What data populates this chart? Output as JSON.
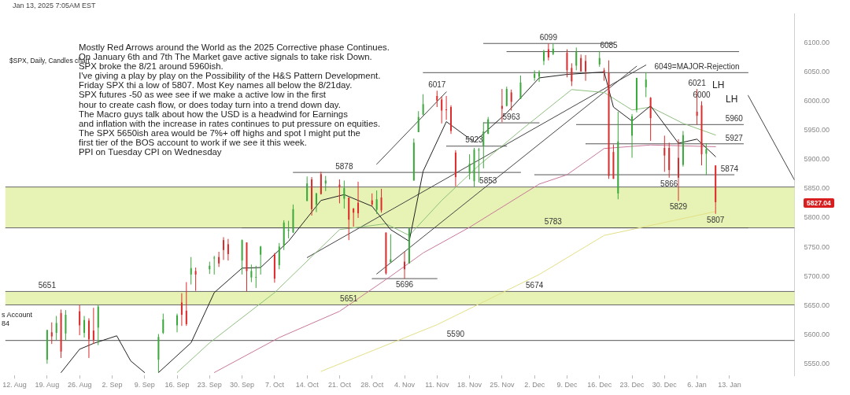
{
  "chart_data": {
    "type": "candlestick",
    "subtitle": "Jan 13, 2025 7:05AM EST",
    "annotations": [
      "Mostly Red Arrows around the World as the 2025 Corrective phase Continues.\nOn January 6th and 7th The Market gave active signals to take risk Down.\nSPX broke the 8/21 around 5960ish.\nI've giving a play by play on the Possibility of the H&S Pattern Development.\nFriday SPX thi a low of 5807. Most Key names all below the 8/21day.\nSPX futures -50 as wee see if we make a active low in the first\nhour to create cash flow, or does today turn into a trend down day.\nThe Macro guys talk about how the USD is a headwind for Earnings\nand inflation with the increase in rates continues to put pressure on equities.\nThe SPX 5650ish area would be 7%+ off highs and spot I might put the\nfirst tier of the BOS account to work if we see it this week.\nPPI on Tuesday CPI on Wednesday",
      "$SPX, Daily, Candles chart",
      "s Account\n84",
      "LH",
      "LH",
      "5827.04",
      {
        "text": "6099",
        "x": "2024-12-05",
        "y": 6099
      },
      {
        "text": "6085",
        "x": "2024-12-18",
        "y": 6085
      },
      {
        "text": "6049=MAJOR-Rejection",
        "x": "2025-01-06",
        "y": 6049
      },
      {
        "text": "6017",
        "x": "2024-11-11",
        "y": 6018
      },
      {
        "text": "6021",
        "x": "2025-01-06",
        "y": 6021
      },
      {
        "text": "6000",
        "x": "2025-01-07",
        "y": 6000
      },
      {
        "text": "5960",
        "x": "2025-01-14",
        "y": 5960
      },
      {
        "text": "5927",
        "x": "2025-01-14",
        "y": 5927
      },
      {
        "text": "5874",
        "x": "2025-01-13",
        "y": 5874
      },
      {
        "text": "5866",
        "x": "2024-12-31",
        "y": 5869
      },
      {
        "text": "5829",
        "x": "2025-01-02",
        "y": 5829
      },
      {
        "text": "5807",
        "x": "2025-01-10",
        "y": 5807
      },
      {
        "text": "5783",
        "x": "2024-12-06",
        "y": 5783
      },
      {
        "text": "5853",
        "x": "2024-11-22",
        "y": 5853
      },
      {
        "text": "5878",
        "x": "2024-10-22",
        "y": 5878
      },
      {
        "text": "5923",
        "x": "2024-11-19",
        "y": 5923
      },
      {
        "text": "5963",
        "x": "2024-11-27",
        "y": 5963
      },
      {
        "text": "5696",
        "x": "2024-11-04",
        "y": 5696
      },
      {
        "text": "5674",
        "x": "2024-12-02",
        "y": 5674
      },
      {
        "text": "5651",
        "x": "2024-10-23",
        "y": 5651
      },
      {
        "text": "5651",
        "x": "2024-08-19",
        "y": 5674
      },
      {
        "text": "5590",
        "x": "2024-11-15",
        "y": 5590
      }
    ],
    "x": [
      "2024-08-19",
      "2024-08-20",
      "2024-08-21",
      "2024-08-22",
      "2024-08-23",
      "2024-08-26",
      "2024-08-27",
      "2024-08-28",
      "2024-08-29",
      "2024-08-30",
      "2024-09-12",
      "2024-09-13",
      "2024-09-16",
      "2024-09-17",
      "2024-09-18",
      "2024-09-19",
      "2024-09-20",
      "2024-09-23",
      "2024-09-24",
      "2024-09-25",
      "2024-09-26",
      "2024-09-27",
      "2024-09-30",
      "2024-10-01",
      "2024-10-02",
      "2024-10-03",
      "2024-10-04",
      "2024-10-07",
      "2024-10-08",
      "2024-10-09",
      "2024-10-10",
      "2024-10-11",
      "2024-10-14",
      "2024-10-15",
      "2024-10-16",
      "2024-10-17",
      "2024-10-18",
      "2024-10-21",
      "2024-10-22",
      "2024-10-23",
      "2024-10-24",
      "2024-10-25",
      "2024-10-28",
      "2024-10-29",
      "2024-10-30",
      "2024-10-31",
      "2024-11-01",
      "2024-11-04",
      "2024-11-05",
      "2024-11-06",
      "2024-11-07",
      "2024-11-08",
      "2024-11-11",
      "2024-11-12",
      "2024-11-13",
      "2024-11-14",
      "2024-11-15",
      "2024-11-18",
      "2024-11-19",
      "2024-11-20",
      "2024-11-21",
      "2024-11-22",
      "2024-11-25",
      "2024-11-26",
      "2024-11-27",
      "2024-11-29",
      "2024-12-02",
      "2024-12-03",
      "2024-12-04",
      "2024-12-05",
      "2024-12-06",
      "2024-12-09",
      "2024-12-10",
      "2024-12-11",
      "2024-12-12",
      "2024-12-13",
      "2024-12-16",
      "2024-12-17",
      "2024-12-18",
      "2024-12-19",
      "2024-12-20",
      "2024-12-23",
      "2024-12-24",
      "2024-12-26",
      "2024-12-27",
      "2024-12-30",
      "2024-12-31",
      "2025-01-02",
      "2025-01-03",
      "2025-01-06",
      "2025-01-07",
      "2025-01-08",
      "2025-01-10"
    ],
    "ohlc": [
      [
        5557,
        5608,
        5550,
        5608
      ],
      [
        5604,
        5621,
        5584,
        5597
      ],
      [
        5603,
        5632,
        5591,
        5620
      ],
      [
        5637,
        5643,
        5560,
        5571
      ],
      [
        5602,
        5642,
        5590,
        5634
      ],
      [
        5640,
        5651,
        5599,
        5616
      ],
      [
        5603,
        5632,
        5595,
        5625
      ],
      [
        5624,
        5628,
        5560,
        5592
      ],
      [
        5607,
        5646,
        5584,
        5591
      ],
      [
        5612,
        5651,
        5582,
        5648
      ],
      [
        5557,
        5601,
        5535,
        5596
      ],
      [
        5603,
        5636,
        5601,
        5626
      ],
      [
        5616,
        5636,
        5604,
        5633
      ],
      [
        5655,
        5671,
        5615,
        5634
      ],
      [
        5641,
        5690,
        5615,
        5618
      ],
      [
        5703,
        5733,
        5686,
        5714
      ],
      [
        5709,
        5715,
        5675,
        5703
      ],
      [
        5712,
        5725,
        5704,
        5718
      ],
      [
        5732,
        5735,
        5703,
        5732
      ],
      [
        5733,
        5742,
        5716,
        5722
      ],
      [
        5762,
        5767,
        5728,
        5745
      ],
      [
        5755,
        5764,
        5727,
        5738
      ],
      [
        5727,
        5763,
        5703,
        5762
      ],
      [
        5758,
        5758,
        5674,
        5709
      ],
      [
        5698,
        5720,
        5690,
        5709
      ],
      [
        5698,
        5718,
        5680,
        5699
      ],
      [
        5737,
        5752,
        5703,
        5751
      ],
      [
        5737,
        5740,
        5689,
        5696
      ],
      [
        5719,
        5757,
        5712,
        5751
      ],
      [
        5752,
        5796,
        5745,
        5792
      ],
      [
        5778,
        5795,
        5765,
        5780
      ],
      [
        5775,
        5823,
        5774,
        5815
      ],
      [
        5829,
        5871,
        5829,
        5859
      ],
      [
        5866,
        5870,
        5804,
        5815
      ],
      [
        5823,
        5843,
        5810,
        5842
      ],
      [
        5875,
        5879,
        5840,
        5841
      ],
      [
        5859,
        5872,
        5846,
        5864
      ],
      [
        5857,
        5866,
        5825,
        5853
      ],
      [
        5833,
        5864,
        5816,
        5851
      ],
      [
        5835,
        5835,
        5762,
        5797
      ],
      [
        5816,
        5817,
        5785,
        5809
      ],
      [
        5826,
        5862,
        5800,
        5808
      ],
      [
        5830,
        5842,
        5820,
        5823
      ],
      [
        5814,
        5847,
        5807,
        5832
      ],
      [
        5835,
        5850,
        5809,
        5813
      ],
      [
        5775,
        5775,
        5703,
        5705
      ],
      [
        5724,
        5772,
        5724,
        5729
      ],
      [
        5725,
        5742,
        5696,
        5712
      ],
      [
        5722,
        5783,
        5722,
        5782
      ],
      [
        5864,
        5936,
        5864,
        5929
      ],
      [
        5947,
        5983,
        5947,
        5973
      ],
      [
        5977,
        6012,
        5976,
        5995
      ],
      [
        6009,
        6018,
        5990,
        6001
      ],
      [
        6003,
        6008,
        5962,
        5984
      ],
      [
        5986,
        6009,
        5968,
        5985
      ],
      [
        5990,
        5993,
        5944,
        5949
      ],
      [
        5912,
        5916,
        5854,
        5870
      ],
      [
        5877,
        5909,
        5866,
        5893
      ],
      [
        5863,
        5920,
        5853,
        5917
      ],
      [
        5917,
        5920,
        5861,
        5917
      ],
      [
        5924,
        5964,
        5885,
        5948
      ],
      [
        5944,
        5973,
        5944,
        5969
      ],
      [
        5992,
        6021,
        5964,
        5987
      ],
      [
        5992,
        6025,
        5991,
        6021
      ],
      [
        6015,
        6020,
        5984,
        5999
      ],
      [
        6004,
        6044,
        6004,
        6032
      ],
      [
        6040,
        6053,
        6035,
        6047
      ],
      [
        6042,
        6053,
        6033,
        6050
      ],
      [
        6069,
        6088,
        6062,
        6086
      ],
      [
        6089,
        6099,
        6070,
        6075
      ],
      [
        6081,
        6099,
        6079,
        6090
      ],
      [
        6083,
        6089,
        6041,
        6053
      ],
      [
        6057,
        6065,
        6026,
        6034
      ],
      [
        6061,
        6092,
        6053,
        6085
      ],
      [
        6074,
        6080,
        6051,
        6051
      ],
      [
        6069,
        6079,
        6035,
        6051
      ],
      [
        6063,
        6086,
        6059,
        6074
      ],
      [
        6053,
        6057,
        6035,
        6050
      ],
      [
        6048,
        6070,
        5867,
        5872
      ],
      [
        5913,
        5926,
        5867,
        5867
      ],
      [
        5842,
        5982,
        5832,
        5931
      ],
      [
        5941,
        5978,
        5903,
        5974
      ],
      [
        5985,
        6040,
        5981,
        6040
      ],
      [
        6024,
        6049,
        6007,
        6037
      ],
      [
        6006,
        6007,
        5932,
        5971
      ],
      [
        5920,
        5941,
        5879,
        5907
      ],
      [
        5920,
        5929,
        5869,
        5882
      ],
      [
        5903,
        5935,
        5829,
        5869
      ],
      [
        5891,
        5949,
        5888,
        5942
      ],
      [
        5982,
        6021,
        5960,
        5975
      ],
      [
        5993,
        6000,
        5890,
        5909
      ],
      [
        5910,
        5928,
        5874,
        5918
      ],
      [
        5890,
        5890,
        5807,
        5827
      ]
    ],
    "series": [
      {
        "type": "line",
        "color": "#222222",
        "x": [
          "2024-08-22",
          "2024-08-26",
          "2024-08-29",
          "2024-09-03",
          "2024-09-06",
          "2024-09-09",
          "2024-09-11",
          "2024-09-12",
          "2024-09-19",
          "2024-09-24",
          "2024-09-30",
          "2024-10-04",
          "2024-10-10",
          "2024-10-17",
          "2024-10-22",
          "2024-10-28",
          "2024-11-01",
          "2024-11-05",
          "2024-11-08",
          "2024-11-13",
          "2024-11-19",
          "2024-11-26",
          "2024-12-03",
          "2024-12-09",
          "2024-12-17",
          "2024-12-19",
          "2024-12-23",
          "2024-12-27",
          "2025-01-02",
          "2025-01-06",
          "2025-01-10"
        ],
        "values": [
          5535,
          5575,
          5585,
          5598,
          5555,
          5535,
          null,
          5535,
          5586,
          5672,
          5714,
          5715,
          5760,
          5830,
          5840,
          5820,
          5780,
          5760,
          5880,
          5965,
          5930,
          5980,
          6040,
          6046,
          6050,
          5990,
          5966,
          5992,
          5928,
          5935,
          5905
        ]
      },
      {
        "type": "line",
        "color": "#8fbf7f",
        "x": [
          "2024-09-16",
          "2024-09-23",
          "2024-10-07",
          "2024-10-21",
          "2024-10-31",
          "2024-11-05",
          "2024-11-12",
          "2024-11-20",
          "2024-11-29",
          "2024-12-10",
          "2024-12-17",
          "2024-12-23",
          "2024-12-27",
          "2025-01-03",
          "2025-01-10"
        ],
        "values": [
          5535,
          5586,
          5672,
          5780,
          5790,
          5770,
          5830,
          5890,
          5950,
          6020,
          6015,
          5985,
          5990,
          5962,
          5942
        ]
      },
      {
        "type": "line",
        "color": "#c9779b",
        "x": [
          "2024-09-24",
          "2024-10-08",
          "2024-10-21",
          "2024-11-01",
          "2024-11-08",
          "2024-11-18",
          "2024-12-03",
          "2024-12-09",
          "2024-12-17",
          "2024-12-27",
          "2025-01-10"
        ],
        "values": [
          5535,
          5595,
          5640,
          5700,
          5740,
          5784,
          5858,
          5874,
          5919,
          5925,
          5922
        ]
      },
      {
        "type": "line",
        "color": "#e3df86",
        "x": [
          "2024-10-17",
          "2024-11-11",
          "2024-12-03",
          "2024-12-17",
          "2025-01-10"
        ],
        "values": [
          5537,
          5617,
          5703,
          5770,
          5811
        ]
      },
      {
        "type": "line",
        "color": "#444444",
        "x": [
          "2024-10-14",
          "2024-12-26"
        ],
        "values": [
          5732,
          6062
        ]
      },
      {
        "type": "line",
        "color": "#444444",
        "x": [
          "2024-10-29",
          "2024-12-24"
        ],
        "values": [
          5704,
          6060
        ]
      },
      {
        "type": "line",
        "color": "#444444",
        "x": [
          "2024-10-29",
          "2024-11-13"
        ],
        "values": [
          5892,
          6016
        ]
      },
      {
        "type": "line",
        "color": "#444444",
        "x": [
          "2025-01-17",
          "2025-01-27"
        ],
        "values": [
          6010,
          5865
        ]
      },
      {
        "type": "line",
        "color": "#555555",
        "x": [
          "2024-11-21",
          "2024-12-19"
        ],
        "values": [
          6099,
          6099
        ]
      },
      {
        "type": "line",
        "color": "#555555",
        "x": [
          "2024-11-26",
          "2025-01-15"
        ],
        "values": [
          6085,
          6085
        ]
      },
      {
        "type": "line",
        "color": "#555555",
        "x": [
          "2024-11-08",
          "2025-01-17"
        ],
        "values": [
          6049,
          6049
        ]
      },
      {
        "type": "line",
        "color": "#555555",
        "x": [
          "2024-12-11",
          "2025-01-16"
        ],
        "values": [
          5960,
          5960
        ]
      },
      {
        "type": "line",
        "color": "#555555",
        "x": [
          "2024-12-13",
          "2025-01-16"
        ],
        "values": [
          5927,
          5927
        ]
      },
      {
        "type": "line",
        "color": "#555555",
        "x": [
          "2024-11-21",
          "2024-12-03"
        ],
        "values": [
          5963,
          5963
        ]
      },
      {
        "type": "line",
        "color": "#555555",
        "x": [
          "2024-11-13",
          "2024-11-26"
        ],
        "values": [
          5923,
          5923
        ]
      },
      {
        "type": "line",
        "color": "#555555",
        "x": [
          "2024-10-11",
          "2024-11-29"
        ],
        "values": [
          5878,
          5878
        ]
      },
      {
        "type": "line",
        "color": "#555555",
        "x": [
          "2024-12-02",
          "2025-01-14"
        ],
        "values": [
          5874,
          5874
        ]
      },
      {
        "type": "line",
        "color": "#555555",
        "x": [
          "2024-09-30",
          "2025-01-17"
        ],
        "values": [
          5783,
          5783
        ]
      },
      {
        "type": "line",
        "color": "#555555",
        "x": [
          "2024-10-28",
          "2024-11-11"
        ],
        "values": [
          5696,
          5696
        ]
      }
    ],
    "bands": [
      {
        "axis": "y",
        "from": 5783,
        "to": 5853,
        "color": "#e6f3b4"
      },
      {
        "axis": "y",
        "from": 5651,
        "to": 5674,
        "color": "#e6f3b4"
      }
    ],
    "ref_lines": [
      {
        "axis": "y",
        "value": 5590,
        "color": "#555555"
      }
    ],
    "xlim": [
      "2024-08-10",
      "2025-01-27"
    ],
    "xticks": [
      {
        "value": "2024-08-12",
        "label": "12. Aug"
      },
      {
        "value": "2024-08-19",
        "label": "19. Aug"
      },
      {
        "value": "2024-08-26",
        "label": "26. Aug"
      },
      {
        "value": "2024-09-02",
        "label": "2. Sep"
      },
      {
        "value": "2024-09-09",
        "label": "9. Sep"
      },
      {
        "value": "2024-09-16",
        "label": "16. Sep"
      },
      {
        "value": "2024-09-23",
        "label": "23. Sep"
      },
      {
        "value": "2024-09-30",
        "label": "30. Sep"
      },
      {
        "value": "2024-10-07",
        "label": "7. Oct"
      },
      {
        "value": "2024-10-14",
        "label": "14. Oct"
      },
      {
        "value": "2024-10-21",
        "label": "21. Oct"
      },
      {
        "value": "2024-10-28",
        "label": "28. Oct"
      },
      {
        "value": "2024-11-04",
        "label": "4. Nov"
      },
      {
        "value": "2024-11-11",
        "label": "11. Nov"
      },
      {
        "value": "2024-11-18",
        "label": "18. Nov"
      },
      {
        "value": "2024-11-25",
        "label": "25. Nov"
      },
      {
        "value": "2024-12-02",
        "label": "2. Dec"
      },
      {
        "value": "2024-12-09",
        "label": "9. Dec"
      },
      {
        "value": "2024-12-16",
        "label": "16. Dec"
      },
      {
        "value": "2024-12-23",
        "label": "23. Dec"
      },
      {
        "value": "2024-12-30",
        "label": "30. Dec"
      },
      {
        "value": "2025-01-06",
        "label": "6. Jan"
      },
      {
        "value": "2025-01-13",
        "label": "13. Jan"
      }
    ],
    "ylim": [
      5530,
      6150
    ],
    "yticks": [
      {
        "value": 5550,
        "label": "5550.00"
      },
      {
        "value": 5600,
        "label": "5600.00"
      },
      {
        "value": 5650,
        "label": "5650.00"
      },
      {
        "value": 5700,
        "label": "5700.00"
      },
      {
        "value": 5750,
        "label": "5750.00"
      },
      {
        "value": 5800,
        "label": "5800.00"
      },
      {
        "value": 5850,
        "label": "5850.00"
      },
      {
        "value": 5900,
        "label": "5900.00"
      },
      {
        "value": 5950,
        "label": "5950.00"
      },
      {
        "value": 6000,
        "label": "6000.00"
      },
      {
        "value": 6050,
        "label": "6050.00"
      },
      {
        "value": 6100,
        "label": "6100.00"
      }
    ]
  }
}
